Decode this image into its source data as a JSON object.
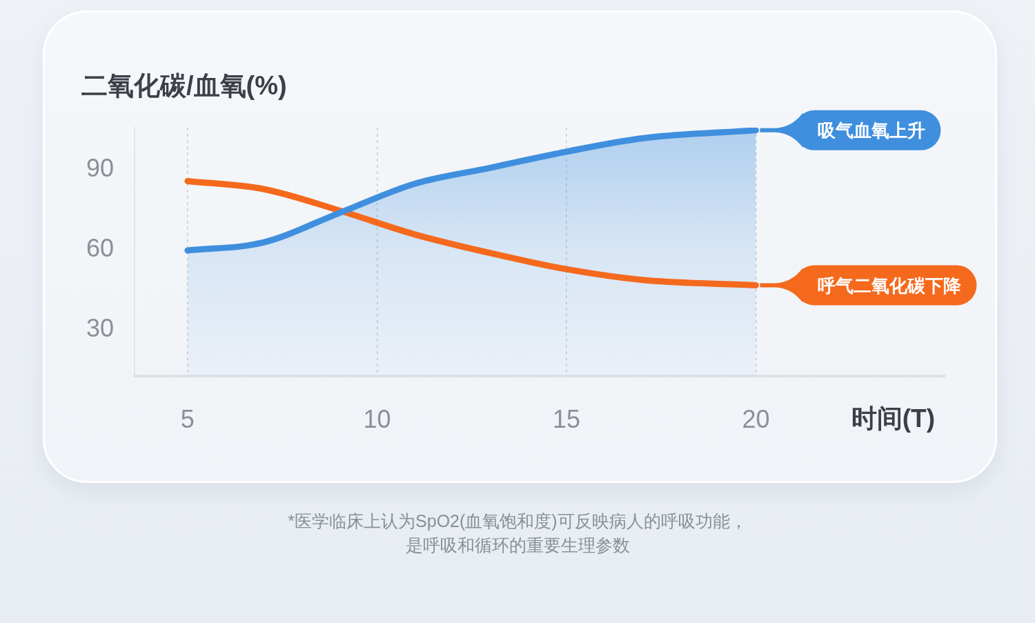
{
  "chart_data": {
    "type": "line",
    "ylabel": "二氧化碳/血氧(%)",
    "xlabel": "时间(T)",
    "x": [
      5,
      7,
      9,
      11,
      13,
      15,
      17,
      20
    ],
    "series": [
      {
        "name": "吸气血氧上升",
        "type": "area",
        "color": "#3f8fde",
        "values": [
          59,
          62,
          73,
          84,
          90,
          96,
          101,
          104
        ]
      },
      {
        "name": "呼气二氧化碳下降",
        "type": "line",
        "color": "#f5691d",
        "values": [
          85,
          82,
          74,
          65,
          58,
          52,
          48,
          46
        ]
      }
    ],
    "xlim": [
      3.6,
      25
    ],
    "xticks": [
      5,
      10,
      15,
      20
    ],
    "ylim": [
      12,
      105
    ],
    "yticks": [
      30,
      60,
      90
    ],
    "grid": "x",
    "legend": "right",
    "annotations": [
      "*医学临床上认为SpO2(血氧饱和度)可反映病人的呼吸功能，是呼吸和循环的重要生理参数"
    ]
  }
}
